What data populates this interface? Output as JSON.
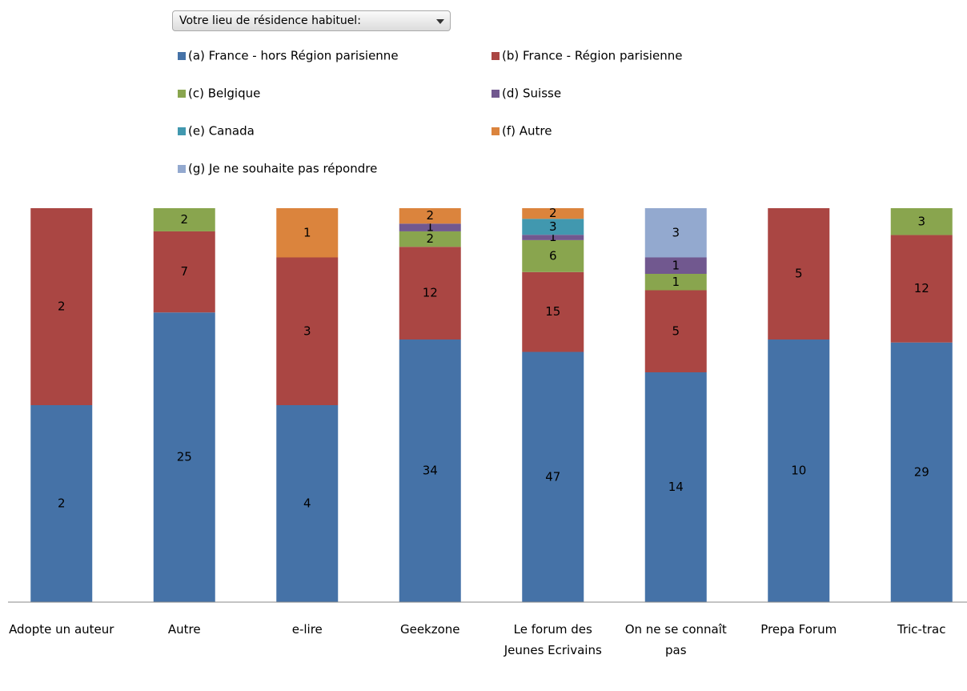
{
  "chart_data": {
    "type": "bar",
    "stacking": "percent",
    "filter_label": "Votre lieu de résidence habituel:",
    "categories": [
      "Adopte un auteur",
      "Autre",
      "e-lire",
      "Geekzone",
      "Le forum des Jeunes Ecrivains",
      "On ne se connaît pas",
      "Prepa Forum",
      "Tric-trac"
    ],
    "series": [
      {
        "name": "(a) France - hors Région parisienne",
        "color": "#4572a7",
        "values": [
          2,
          25,
          4,
          34,
          47,
          14,
          10,
          29
        ]
      },
      {
        "name": "(b) France - Région parisienne",
        "color": "#aa4643",
        "values": [
          2,
          7,
          3,
          12,
          15,
          5,
          5,
          12
        ]
      },
      {
        "name": "(c) Belgique",
        "color": "#89a54e",
        "values": [
          null,
          2,
          null,
          2,
          6,
          1,
          null,
          3
        ]
      },
      {
        "name": "(d) Suisse",
        "color": "#71588f",
        "values": [
          null,
          null,
          null,
          1,
          1,
          1,
          null,
          null
        ]
      },
      {
        "name": "(e) Canada",
        "color": "#4198af",
        "values": [
          null,
          null,
          null,
          null,
          3,
          null,
          null,
          null
        ]
      },
      {
        "name": "(f) Autre",
        "color": "#db843d",
        "values": [
          null,
          null,
          1,
          2,
          2,
          null,
          null,
          null
        ]
      },
      {
        "name": "(g) Je ne souhaite pas répondre",
        "color": "#93a9cf",
        "values": [
          null,
          null,
          null,
          null,
          null,
          3,
          null,
          null
        ]
      }
    ]
  }
}
